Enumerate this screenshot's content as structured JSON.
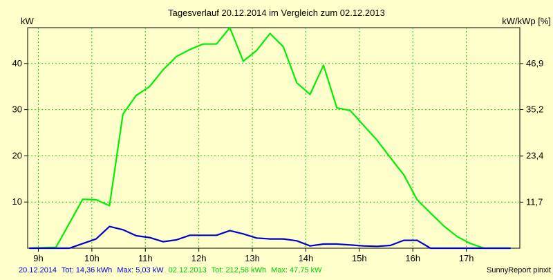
{
  "chart_data": {
    "type": "line",
    "title": "Tagesverlauf 20.12.2014 im Vergleich zum 02.12.2013",
    "ylabel_left": "kW",
    "ylabel_right": "kW/kWp [%]",
    "xlim": [
      8.8,
      18.0
    ],
    "ylim": [
      0,
      47.75
    ],
    "grid": true,
    "x_ticks": [
      9,
      10,
      11,
      12,
      13,
      14,
      15,
      16,
      17
    ],
    "x_tick_labels": [
      "9h",
      "10h",
      "11h",
      "12h",
      "13h",
      "14h",
      "15h",
      "16h",
      "17h"
    ],
    "y_left_ticks": [
      10,
      20,
      30,
      40
    ],
    "y_left_tick_labels": [
      "10",
      "20",
      "30",
      "40"
    ],
    "y_right_ticks": [
      11.7,
      23.4,
      35.2,
      46.9
    ],
    "y_right_tick_labels": [
      "11,7",
      "23,4",
      "35,2",
      "46,9"
    ],
    "y_right_scale": 1.173,
    "series": [
      {
        "name": "02.12.2013",
        "color": "#00ee00",
        "x": [
          8.83,
          9.33,
          9.83,
          10.08,
          10.33,
          10.58,
          10.83,
          11.08,
          11.33,
          11.58,
          11.83,
          12.08,
          12.33,
          12.58,
          12.83,
          13.08,
          13.33,
          13.58,
          13.83,
          14.08,
          14.33,
          14.58,
          14.83,
          15.08,
          15.33,
          15.58,
          15.83,
          16.08,
          16.33,
          16.58,
          16.83,
          17.08,
          17.33,
          17.58,
          17.83
        ],
        "values": [
          0,
          0.2,
          10.6,
          10.5,
          9.2,
          29.0,
          33.1,
          35.0,
          38.6,
          41.5,
          43.0,
          44.2,
          44.2,
          47.75,
          40.5,
          42.8,
          46.5,
          43.6,
          35.8,
          33.3,
          39.6,
          30.4,
          29.8,
          26.6,
          23.4,
          19.6,
          15.9,
          10.5,
          7.6,
          4.8,
          2.5,
          1.0,
          0,
          0,
          0
        ],
        "legend_label": "02.12.2013",
        "tot_label": "Tot: 212,58 kWh",
        "max_label": "Max: 47,75 kW"
      },
      {
        "name": "20.12.2014",
        "color": "#0000cc",
        "x": [
          8.83,
          9.33,
          9.58,
          9.83,
          10.08,
          10.33,
          10.58,
          10.83,
          11.08,
          11.33,
          11.58,
          11.83,
          12.08,
          12.33,
          12.58,
          12.83,
          13.08,
          13.33,
          13.58,
          13.83,
          14.08,
          14.33,
          14.58,
          14.83,
          15.08,
          15.33,
          15.58,
          15.83,
          16.08,
          16.33,
          16.58,
          16.83,
          17.08,
          17.33,
          17.58,
          17.83
        ],
        "values": [
          0,
          0,
          0,
          1.0,
          2.0,
          4.7,
          4.0,
          2.7,
          2.3,
          1.4,
          1.8,
          2.8,
          2.8,
          2.8,
          3.8,
          3.1,
          2.2,
          2.0,
          2.0,
          1.6,
          0.5,
          0.9,
          0.9,
          0.7,
          0.5,
          0.4,
          0.6,
          1.7,
          1.7,
          0,
          0,
          0,
          0,
          0,
          0,
          0
        ],
        "legend_label": "20.12.2014",
        "tot_label": "Tot: 14,36 kWh",
        "max_label": "Max: 5,03 kW"
      }
    ]
  },
  "footer": {
    "credit": "SunnyReport pinxit"
  }
}
